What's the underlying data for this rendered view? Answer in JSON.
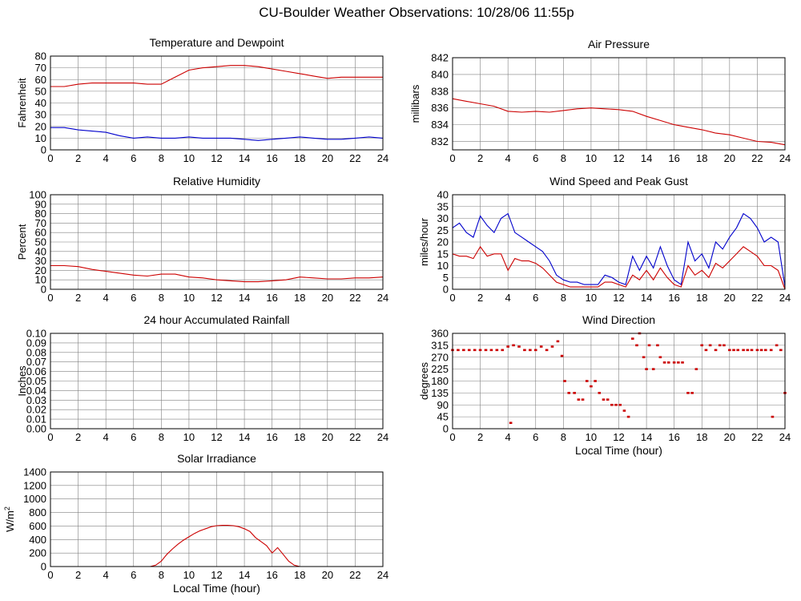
{
  "title": "CU-Boulder Weather Observations: 10/28/06 11:55p",
  "colors": {
    "red": "#cc0000",
    "blue": "#0000cc",
    "grid": "#808080",
    "frame": "#000000"
  },
  "chart_data": [
    {
      "id": "temperature",
      "type": "line",
      "title": "Temperature and Dewpoint",
      "xlabel": "",
      "ylabel": "Fahrenheit",
      "xlim": [
        0,
        24
      ],
      "ylim": [
        0,
        80
      ],
      "xticks": [
        "0",
        "2",
        "4",
        "6",
        "8",
        "10",
        "12",
        "14",
        "16",
        "18",
        "20",
        "22",
        "24"
      ],
      "yticks": [
        "0",
        "10",
        "20",
        "30",
        "40",
        "50",
        "60",
        "70",
        "80"
      ],
      "series": [
        {
          "name": "Temperature",
          "color": "#cc0000",
          "x": [
            0,
            1,
            2,
            3,
            4,
            5,
            6,
            7,
            8,
            9,
            10,
            11,
            12,
            13,
            14,
            15,
            16,
            17,
            18,
            19,
            20,
            21,
            22,
            23,
            24
          ],
          "y": [
            54,
            54,
            56,
            57,
            57,
            57,
            57,
            56,
            56,
            62,
            68,
            70,
            71,
            72,
            72,
            71,
            69,
            67,
            65,
            63,
            61,
            62,
            62,
            62,
            62
          ]
        },
        {
          "name": "Dewpoint",
          "color": "#0000cc",
          "x": [
            0,
            1,
            2,
            3,
            4,
            5,
            6,
            7,
            8,
            9,
            10,
            11,
            12,
            13,
            14,
            15,
            16,
            17,
            18,
            19,
            20,
            21,
            22,
            23,
            24
          ],
          "y": [
            19,
            19,
            17,
            16,
            15,
            12,
            10,
            11,
            10,
            10,
            11,
            10,
            10,
            10,
            9,
            8,
            9,
            10,
            11,
            10,
            9,
            9,
            10,
            11,
            10
          ]
        }
      ]
    },
    {
      "id": "pressure",
      "type": "line",
      "title": "Air Pressure",
      "xlabel": "",
      "ylabel": "millibars",
      "xlim": [
        0,
        24
      ],
      "ylim": [
        831,
        842
      ],
      "xticks": [
        "0",
        "2",
        "4",
        "6",
        "8",
        "10",
        "12",
        "14",
        "16",
        "18",
        "20",
        "22",
        "24"
      ],
      "yticks": [
        "832",
        "834",
        "836",
        "838",
        "840",
        "842"
      ],
      "series": [
        {
          "name": "Air Pressure",
          "color": "#cc0000",
          "x": [
            0,
            1,
            2,
            3,
            4,
            5,
            6,
            7,
            8,
            9,
            10,
            11,
            12,
            13,
            14,
            15,
            16,
            17,
            18,
            19,
            20,
            21,
            22,
            23,
            24
          ],
          "y": [
            837.1,
            836.8,
            836.5,
            836.2,
            835.6,
            835.5,
            835.6,
            835.5,
            835.7,
            835.9,
            836.0,
            835.9,
            835.8,
            835.6,
            835.0,
            834.5,
            834.0,
            833.7,
            833.4,
            833.0,
            832.8,
            832.4,
            832.0,
            831.9,
            831.6
          ]
        }
      ]
    },
    {
      "id": "humidity",
      "type": "line",
      "title": "Relative Humidity",
      "xlabel": "",
      "ylabel": "Percent",
      "xlim": [
        0,
        24
      ],
      "ylim": [
        0,
        100
      ],
      "xticks": [
        "0",
        "2",
        "4",
        "6",
        "8",
        "10",
        "12",
        "14",
        "16",
        "18",
        "20",
        "22",
        "24"
      ],
      "yticks": [
        "0",
        "10",
        "20",
        "30",
        "40",
        "50",
        "60",
        "70",
        "80",
        "90",
        "100"
      ],
      "series": [
        {
          "name": "Relative Humidity",
          "color": "#cc0000",
          "x": [
            0,
            1,
            2,
            3,
            4,
            5,
            6,
            7,
            8,
            9,
            10,
            11,
            12,
            13,
            14,
            15,
            16,
            17,
            18,
            19,
            20,
            21,
            22,
            23,
            24
          ],
          "y": [
            25,
            25,
            24,
            21,
            19,
            17,
            15,
            14,
            16,
            16,
            13,
            12,
            10,
            9,
            8,
            8,
            9,
            10,
            13,
            12,
            11,
            11,
            12,
            12,
            13
          ]
        }
      ]
    },
    {
      "id": "wind-speed",
      "type": "line",
      "title": "Wind Speed and Peak Gust",
      "xlabel": "",
      "ylabel": "miles/hour",
      "xlim": [
        0,
        24
      ],
      "ylim": [
        0,
        40
      ],
      "xticks": [
        "0",
        "2",
        "4",
        "6",
        "8",
        "10",
        "12",
        "14",
        "16",
        "18",
        "20",
        "22",
        "24"
      ],
      "yticks": [
        "0",
        "5",
        "10",
        "15",
        "20",
        "25",
        "30",
        "35",
        "40"
      ],
      "series": [
        {
          "name": "Peak Gust",
          "color": "#0000cc",
          "x": [
            0,
            0.5,
            1,
            1.5,
            2,
            2.5,
            3,
            3.5,
            4,
            4.5,
            5,
            5.5,
            6,
            6.5,
            7,
            7.5,
            8,
            8.5,
            9,
            9.5,
            10,
            10.5,
            11,
            11.5,
            12,
            12.5,
            13,
            13.5,
            14,
            14.5,
            15,
            15.5,
            16,
            16.5,
            17,
            17.5,
            18,
            18.5,
            19,
            19.5,
            20,
            20.5,
            21,
            21.5,
            22,
            22.5,
            23,
            23.5,
            24
          ],
          "y": [
            26,
            28,
            24,
            22,
            31,
            27,
            24,
            30,
            32,
            24,
            22,
            20,
            18,
            16,
            12,
            6,
            4,
            3,
            3,
            2,
            2,
            2,
            6,
            5,
            3,
            2,
            14,
            8,
            14,
            9,
            18,
            10,
            4,
            2,
            20,
            12,
            15,
            9,
            20,
            17,
            22,
            26,
            32,
            30,
            26,
            20,
            22,
            20,
            1
          ]
        },
        {
          "name": "Wind Speed",
          "color": "#cc0000",
          "x": [
            0,
            0.5,
            1,
            1.5,
            2,
            2.5,
            3,
            3.5,
            4,
            4.5,
            5,
            5.5,
            6,
            6.5,
            7,
            7.5,
            8,
            8.5,
            9,
            9.5,
            10,
            10.5,
            11,
            11.5,
            12,
            12.5,
            13,
            13.5,
            14,
            14.5,
            15,
            15.5,
            16,
            16.5,
            17,
            17.5,
            18,
            18.5,
            19,
            19.5,
            20,
            20.5,
            21,
            21.5,
            22,
            22.5,
            23,
            23.5,
            24
          ],
          "y": [
            15,
            14,
            14,
            13,
            18,
            14,
            15,
            15,
            8,
            13,
            12,
            12,
            11,
            9,
            6,
            3,
            2,
            1,
            1,
            1,
            1,
            1,
            3,
            3,
            2,
            1,
            6,
            4,
            8,
            4,
            9,
            5,
            2,
            1,
            10,
            6,
            8,
            5,
            11,
            9,
            12,
            15,
            18,
            16,
            14,
            10,
            10,
            8,
            0
          ]
        }
      ]
    },
    {
      "id": "rainfall",
      "type": "line",
      "title": "24 hour Accumulated Rainfall",
      "xlabel": "",
      "ylabel": "Inches",
      "xlim": [
        0,
        24
      ],
      "ylim": [
        0,
        0.1
      ],
      "xticks": [
        "0",
        "2",
        "4",
        "6",
        "8",
        "10",
        "12",
        "14",
        "16",
        "18",
        "20",
        "22",
        "24"
      ],
      "yticks": [
        "0.00",
        "0.01",
        "0.02",
        "0.03",
        "0.04",
        "0.05",
        "0.06",
        "0.07",
        "0.08",
        "0.09",
        "0.10"
      ],
      "series": [
        {
          "name": "Rainfall",
          "color": "#cc0000",
          "x": [
            0,
            24
          ],
          "y": [
            0,
            0
          ]
        }
      ]
    },
    {
      "id": "wind-direction",
      "type": "scatter",
      "title": "Wind Direction",
      "xlabel": "Local Time (hour)",
      "ylabel": "degrees",
      "xlim": [
        0,
        24
      ],
      "ylim": [
        0,
        360
      ],
      "xticks": [
        "0",
        "2",
        "4",
        "6",
        "8",
        "10",
        "12",
        "14",
        "16",
        "18",
        "20",
        "22",
        "24"
      ],
      "yticks": [
        "0",
        "45",
        "90",
        "135",
        "180",
        "225",
        "270",
        "315",
        "360"
      ],
      "series": [
        {
          "name": "Wind Direction",
          "color": "#cc0000",
          "x": [
            0,
            0.4,
            0.8,
            1.2,
            1.6,
            2.0,
            2.4,
            2.8,
            3.2,
            3.6,
            4.0,
            4.2,
            4.4,
            4.8,
            5.2,
            5.6,
            6.0,
            6.4,
            6.8,
            7.2,
            7.6,
            7.9,
            8.1,
            8.4,
            8.8,
            9.1,
            9.4,
            9.7,
            10.0,
            10.3,
            10.6,
            10.9,
            11.2,
            11.5,
            11.8,
            12.1,
            12.4,
            12.7,
            13.0,
            13.3,
            13.5,
            13.8,
            14.0,
            14.2,
            14.5,
            14.8,
            15.0,
            15.3,
            15.6,
            16.0,
            16.3,
            16.6,
            17.0,
            17.3,
            17.6,
            18.0,
            18.3,
            18.6,
            19.0,
            19.3,
            19.6,
            20.0,
            20.3,
            20.6,
            21.0,
            21.3,
            21.6,
            22.0,
            22.3,
            22.6,
            23.0,
            23.1,
            23.4,
            23.7,
            24.0
          ],
          "y": [
            297,
            297,
            297,
            297,
            297,
            297,
            297,
            297,
            297,
            297,
            310,
            22,
            315,
            310,
            297,
            297,
            297,
            310,
            297,
            310,
            330,
            275,
            180,
            135,
            135,
            110,
            110,
            180,
            160,
            180,
            135,
            110,
            110,
            90,
            90,
            90,
            68,
            45,
            340,
            315,
            360,
            270,
            225,
            315,
            225,
            315,
            270,
            250,
            250,
            250,
            250,
            250,
            135,
            135,
            225,
            315,
            297,
            315,
            297,
            315,
            315,
            297,
            297,
            297,
            297,
            297,
            297,
            297,
            297,
            297,
            297,
            45,
            315,
            297,
            135
          ]
        }
      ]
    },
    {
      "id": "solar",
      "type": "line",
      "title": "Solar Irradiance",
      "xlabel": "Local Time (hour)",
      "ylabel": "W/m2",
      "xlim": [
        0,
        24
      ],
      "ylim": [
        0,
        1400
      ],
      "xticks": [
        "0",
        "2",
        "4",
        "6",
        "8",
        "10",
        "12",
        "14",
        "16",
        "18",
        "20",
        "22",
        "24"
      ],
      "yticks": [
        "0",
        "200",
        "400",
        "600",
        "800",
        "1000",
        "1200",
        "1400"
      ],
      "series": [
        {
          "name": "Solar Irradiance",
          "color": "#cc0000",
          "x": [
            0,
            7.2,
            7.6,
            8.0,
            8.4,
            8.8,
            9.2,
            9.6,
            10.0,
            10.4,
            10.8,
            11.2,
            11.6,
            12.0,
            12.4,
            12.8,
            13.2,
            13.6,
            14.0,
            14.4,
            14.8,
            15.2,
            15.6,
            16.0,
            16.4,
            16.8,
            17.2,
            17.6,
            18.0,
            24
          ],
          "y": [
            0,
            0,
            20,
            80,
            180,
            260,
            330,
            390,
            440,
            490,
            530,
            560,
            590,
            605,
            610,
            610,
            605,
            590,
            560,
            520,
            430,
            370,
            310,
            200,
            280,
            180,
            80,
            20,
            0,
            0
          ]
        }
      ]
    }
  ]
}
